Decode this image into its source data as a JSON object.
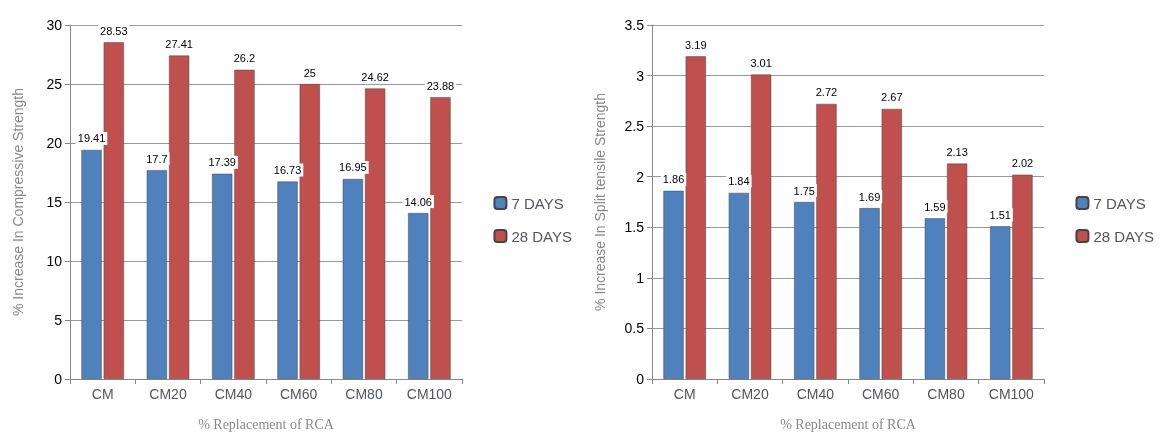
{
  "chart_data": [
    {
      "type": "bar",
      "xlabel": "% Replacement of RCA",
      "ylabel": "% Increase In Compressive Strength",
      "categories": [
        "CM",
        "CM20",
        "CM40",
        "CM60",
        "CM80",
        "CM100"
      ],
      "series": [
        {
          "name": "7 DAYS",
          "color": "#4f81bd",
          "values": [
            19.41,
            17.7,
            17.39,
            16.73,
            16.95,
            14.06
          ]
        },
        {
          "name": "28 DAYS",
          "color": "#c0504d",
          "values": [
            28.53,
            27.41,
            26.2,
            25,
            24.62,
            23.88
          ]
        }
      ],
      "ylim": [
        0,
        30
      ],
      "yticks": [
        0,
        5,
        10,
        15,
        20,
        25,
        30
      ],
      "grid": "y",
      "legend": "right",
      "data_labels": true
    },
    {
      "type": "bar",
      "xlabel": "% Replacement of RCA",
      "ylabel": "% Increase In Split tensile Strength",
      "categories": [
        "CM",
        "CM20",
        "CM40",
        "CM60",
        "CM80",
        "CM100"
      ],
      "series": [
        {
          "name": "7 DAYS",
          "color": "#4f81bd",
          "values": [
            1.86,
            1.84,
            1.75,
            1.69,
            1.59,
            1.51
          ]
        },
        {
          "name": "28 DAYS",
          "color": "#c0504d",
          "values": [
            3.19,
            3.01,
            2.72,
            2.67,
            2.13,
            2.02
          ]
        }
      ],
      "ylim": [
        0,
        3.5
      ],
      "yticks": [
        0,
        0.5,
        1,
        1.5,
        2,
        2.5,
        3,
        3.5
      ],
      "grid": "y",
      "legend": "right",
      "data_labels": true
    }
  ]
}
